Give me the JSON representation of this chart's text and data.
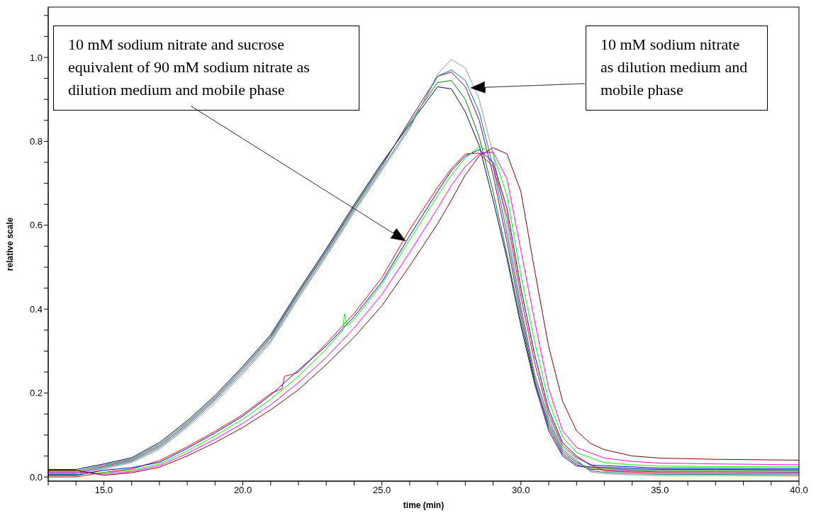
{
  "chart_data": {
    "type": "line",
    "xlabel": "time (min)",
    "ylabel": "relative scale",
    "xlim": [
      13,
      40
    ],
    "ylim": [
      -0.01,
      1.12
    ],
    "xticks": [
      {
        "value": 13,
        "label": null
      },
      {
        "value": 14,
        "label": null
      },
      {
        "value": 15,
        "label": "15.0"
      },
      {
        "value": 16,
        "label": null
      },
      {
        "value": 17,
        "label": null
      },
      {
        "value": 18,
        "label": null
      },
      {
        "value": 19,
        "label": null
      },
      {
        "value": 20,
        "label": "20.0"
      },
      {
        "value": 21,
        "label": null
      },
      {
        "value": 22,
        "label": null
      },
      {
        "value": 23,
        "label": null
      },
      {
        "value": 24,
        "label": null
      },
      {
        "value": 25,
        "label": "25.0"
      },
      {
        "value": 26,
        "label": null
      },
      {
        "value": 27,
        "label": null
      },
      {
        "value": 28,
        "label": null
      },
      {
        "value": 29,
        "label": null
      },
      {
        "value": 30,
        "label": "30.0"
      },
      {
        "value": 31,
        "label": null
      },
      {
        "value": 32,
        "label": null
      },
      {
        "value": 33,
        "label": null
      },
      {
        "value": 34,
        "label": null
      },
      {
        "value": 35,
        "label": "35.0"
      },
      {
        "value": 36,
        "label": null
      },
      {
        "value": 37,
        "label": null
      },
      {
        "value": 38,
        "label": null
      },
      {
        "value": 39,
        "label": null
      },
      {
        "value": 40,
        "label": "40.0"
      }
    ],
    "yticks": [
      {
        "value": 0,
        "label": "0.0"
      },
      {
        "value": 0.05,
        "label": null
      },
      {
        "value": 0.1,
        "label": null
      },
      {
        "value": 0.15,
        "label": null
      },
      {
        "value": 0.2,
        "label": "0.2"
      },
      {
        "value": 0.25,
        "label": null
      },
      {
        "value": 0.3,
        "label": null
      },
      {
        "value": 0.35,
        "label": null
      },
      {
        "value": 0.4,
        "label": "0.4"
      },
      {
        "value": 0.45,
        "label": null
      },
      {
        "value": 0.5,
        "label": null
      },
      {
        "value": 0.55,
        "label": null
      },
      {
        "value": 0.6,
        "label": "0.6"
      },
      {
        "value": 0.65,
        "label": null
      },
      {
        "value": 0.7,
        "label": null
      },
      {
        "value": 0.75,
        "label": null
      },
      {
        "value": 0.8,
        "label": "0.8"
      },
      {
        "value": 0.85,
        "label": null
      },
      {
        "value": 0.9,
        "label": null
      },
      {
        "value": 0.95,
        "label": null
      },
      {
        "value": 1.0,
        "label": "1.0"
      },
      {
        "value": 1.05,
        "label": null
      },
      {
        "value": 1.1,
        "label": null
      }
    ],
    "grid": false,
    "legend": false,
    "marker": "none",
    "line_style": "solid",
    "annotations": [
      "10 mM sodium nitrate and sucrose equivalent of 90 mM sodium nitrate as dilution medium and mobile phase",
      "10 mM sodium nitrate as dilution medium and mobile phase"
    ],
    "series": [
      {
        "color": "#000080",
        "x": [
          13,
          14,
          15,
          16,
          17,
          18,
          19,
          20,
          21,
          22,
          23,
          24,
          25,
          26,
          27,
          27.5,
          28,
          28.5,
          29,
          29.5,
          30,
          30.5,
          31,
          31.5,
          32,
          32.5,
          33,
          34,
          35,
          37,
          40
        ],
        "values": [
          0.018,
          0.018,
          0.031,
          0.046,
          0.082,
          0.134,
          0.194,
          0.264,
          0.339,
          0.444,
          0.544,
          0.649,
          0.749,
          0.84,
          0.93,
          0.925,
          0.87,
          0.79,
          0.66,
          0.52,
          0.36,
          0.22,
          0.11,
          0.05,
          0.026,
          0.024,
          0.023,
          0.02,
          0.018,
          0.018,
          0.017
        ]
      },
      {
        "color": "#008000",
        "x": [
          13,
          14,
          15,
          16,
          17,
          18,
          19,
          20,
          21,
          22,
          23,
          24,
          25,
          26,
          27,
          27.5,
          28,
          28.5,
          29,
          29.5,
          30,
          30.5,
          31,
          31.5,
          32,
          32.5,
          33,
          34,
          35,
          37,
          40
        ],
        "values": [
          0.014,
          0.014,
          0.028,
          0.043,
          0.078,
          0.13,
          0.19,
          0.26,
          0.335,
          0.44,
          0.54,
          0.645,
          0.745,
          0.845,
          0.94,
          0.945,
          0.9,
          0.81,
          0.68,
          0.53,
          0.37,
          0.225,
          0.126,
          0.06,
          0.034,
          0.021,
          0.02,
          0.017,
          0.015,
          0.015,
          0.014
        ]
      },
      {
        "color": "#800080",
        "x": [
          13,
          14,
          15,
          16,
          17,
          18,
          19,
          20,
          21,
          22,
          23,
          24,
          25,
          26,
          27,
          27.5,
          28,
          28.5,
          29,
          29.5,
          30,
          30.5,
          31,
          31.5,
          32,
          32.5,
          33,
          34,
          35,
          37,
          40
        ],
        "values": [
          0.01,
          0.01,
          0.025,
          0.04,
          0.074,
          0.126,
          0.186,
          0.256,
          0.331,
          0.436,
          0.536,
          0.641,
          0.741,
          0.85,
          0.955,
          0.965,
          0.93,
          0.85,
          0.72,
          0.56,
          0.385,
          0.23,
          0.118,
          0.055,
          0.03,
          0.018,
          0.017,
          0.014,
          0.012,
          0.012,
          0.011
        ]
      },
      {
        "color": "#008080",
        "x": [
          13,
          14,
          15,
          16,
          17,
          18,
          19,
          20,
          21,
          22,
          23,
          24,
          25,
          26,
          27,
          27.5,
          28,
          28.5,
          29,
          29.5,
          30,
          30.5,
          31,
          31.5,
          32,
          32.5,
          33,
          34,
          35,
          37,
          40
        ],
        "values": [
          0.006,
          0.006,
          0.022,
          0.037,
          0.07,
          0.122,
          0.182,
          0.25,
          0.325,
          0.43,
          0.53,
          0.635,
          0.735,
          0.835,
          0.955,
          0.97,
          0.945,
          0.87,
          0.74,
          0.58,
          0.4,
          0.24,
          0.134,
          0.065,
          0.038,
          0.015,
          0.011,
          0.008,
          0.006,
          0.006,
          0.005
        ]
      },
      {
        "color": "#999999",
        "x": [
          13,
          14,
          15,
          16,
          17,
          18,
          19,
          20,
          21,
          22,
          23,
          24,
          25,
          26,
          27,
          27.5,
          28,
          28.5,
          29,
          29.5,
          30,
          30.5,
          31,
          31.5,
          32,
          32.5,
          33,
          34,
          35,
          37,
          40
        ],
        "values": [
          0.002,
          0.002,
          0.019,
          0.034,
          0.066,
          0.118,
          0.176,
          0.245,
          0.32,
          0.425,
          0.525,
          0.63,
          0.73,
          0.83,
          0.96,
          0.995,
          0.975,
          0.9,
          0.77,
          0.6,
          0.41,
          0.245,
          0.142,
          0.07,
          0.042,
          0.012,
          0.008,
          0.005,
          0.003,
          0.003,
          0.002
        ]
      },
      {
        "color": "#ff0000",
        "x": [
          13,
          14,
          15,
          16,
          17,
          18,
          19,
          20,
          21,
          21.4,
          21.5,
          21.8,
          22,
          23,
          24,
          25,
          26,
          27,
          27.5,
          28,
          28.5,
          29,
          29.5,
          30,
          30.5,
          31,
          31.5,
          32,
          33,
          35,
          40
        ],
        "values": [
          0.0,
          0.0,
          0.011,
          0.019,
          0.039,
          0.072,
          0.109,
          0.149,
          0.199,
          0.21,
          0.24,
          0.245,
          0.25,
          0.318,
          0.39,
          0.475,
          0.59,
          0.69,
          0.735,
          0.77,
          0.772,
          0.74,
          0.62,
          0.43,
          0.27,
          0.15,
          0.075,
          0.046,
          0.014,
          0.009,
          0.008
        ]
      },
      {
        "color": "#0000ff",
        "x": [
          13,
          14,
          15,
          16,
          17,
          18,
          19,
          20,
          21,
          22,
          23,
          24,
          25,
          26,
          27,
          27.5,
          28,
          28.5,
          29,
          29.5,
          30,
          30.5,
          31,
          31.5,
          32,
          32.5,
          33,
          34,
          35,
          37,
          40
        ],
        "values": [
          0.004,
          0.004,
          0.016,
          0.022,
          0.035,
          0.068,
          0.105,
          0.145,
          0.195,
          0.255,
          0.312,
          0.382,
          0.465,
          0.575,
          0.68,
          0.73,
          0.765,
          0.78,
          0.75,
          0.64,
          0.45,
          0.29,
          0.16,
          0.082,
          0.05,
          0.028,
          0.027,
          0.024,
          0.021,
          0.021,
          0.02
        ]
      },
      {
        "color": "#00ff00",
        "x": [
          13,
          14,
          15,
          16,
          17,
          18,
          19,
          20,
          21,
          22,
          23,
          23.6,
          23.65,
          23.75,
          24,
          25,
          26,
          27,
          27.5,
          28,
          28.5,
          29,
          29.5,
          30,
          30.5,
          31,
          31.5,
          32,
          33,
          34,
          35,
          37,
          40
        ],
        "values": [
          0.008,
          0.008,
          0.01,
          0.016,
          0.031,
          0.062,
          0.098,
          0.138,
          0.185,
          0.24,
          0.305,
          0.35,
          0.39,
          0.36,
          0.375,
          0.46,
          0.565,
          0.67,
          0.72,
          0.76,
          0.788,
          0.77,
          0.67,
          0.48,
          0.32,
          0.18,
          0.095,
          0.058,
          0.034,
          0.029,
          0.026,
          0.025,
          0.024
        ]
      },
      {
        "color": "#ff00ff",
        "x": [
          13,
          14,
          15,
          16,
          17,
          18,
          19,
          20,
          21,
          22,
          23,
          24,
          25,
          26,
          27,
          27.5,
          28,
          28.5,
          29,
          29.5,
          30,
          30.5,
          31,
          31.5,
          32,
          33,
          34,
          35,
          37,
          40
        ],
        "values": [
          0.012,
          0.012,
          0.007,
          0.013,
          0.027,
          0.056,
          0.09,
          0.128,
          0.172,
          0.225,
          0.285,
          0.355,
          0.435,
          0.535,
          0.64,
          0.695,
          0.74,
          0.77,
          0.775,
          0.71,
          0.54,
          0.37,
          0.21,
          0.11,
          0.07,
          0.045,
          0.037,
          0.033,
          0.031,
          0.029
        ]
      },
      {
        "color": "#800000",
        "x": [
          13,
          14,
          15,
          16,
          17,
          18,
          19,
          20,
          21,
          22,
          23,
          24,
          25,
          26,
          27,
          27.5,
          28,
          28.5,
          29,
          29.5,
          30,
          30.5,
          31,
          31.5,
          32,
          32.5,
          33,
          34,
          35,
          37,
          40
        ],
        "values": [
          0.016,
          0.016,
          0.004,
          0.01,
          0.023,
          0.05,
          0.082,
          0.118,
          0.16,
          0.208,
          0.268,
          0.333,
          0.408,
          0.503,
          0.603,
          0.66,
          0.72,
          0.765,
          0.785,
          0.77,
          0.68,
          0.49,
          0.31,
          0.18,
          0.11,
          0.08,
          0.065,
          0.05,
          0.045,
          0.042,
          0.04
        ]
      }
    ]
  }
}
